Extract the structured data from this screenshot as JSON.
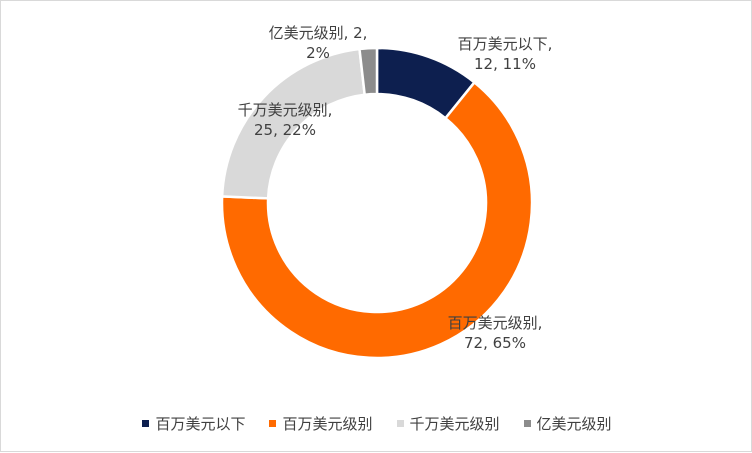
{
  "chart_data": {
    "type": "pie",
    "subtype": "doughnut",
    "categories": [
      "百万美元以下",
      "百万美元级别",
      "千万美元级别",
      "亿美元级别"
    ],
    "values": [
      12,
      72,
      25,
      2
    ],
    "percents": [
      "11%",
      "65%",
      "22%",
      "2%"
    ],
    "colors": [
      "#0d1f4f",
      "#ff6a00",
      "#d9d9d9",
      "#8c8c8c"
    ],
    "data_labels": [
      {
        "line1": "百万美元以下,",
        "line2": "12, 11%"
      },
      {
        "line1": "百万美元级别,",
        "line2": "72, 65%"
      },
      {
        "line1": "千万美元级别,",
        "line2": "25, 22%"
      },
      {
        "line1": "亿美元级别, 2,",
        "line2": "2%"
      }
    ],
    "title": "",
    "legend_position": "bottom"
  }
}
